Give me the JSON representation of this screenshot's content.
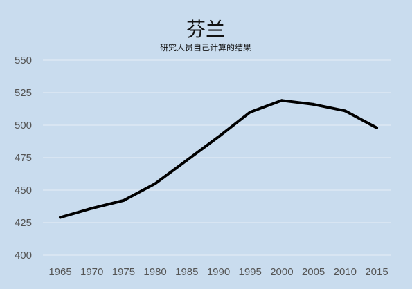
{
  "chart_data": {
    "type": "line",
    "title": "芬兰",
    "subtitle": "研究人员自己计算的结果",
    "xlabel": "",
    "ylabel": "",
    "x": [
      1965,
      1970,
      1975,
      1980,
      1985,
      1990,
      1995,
      2000,
      2005,
      2010,
      2015
    ],
    "series": [
      {
        "values": [
          429,
          436,
          442,
          455,
          473,
          491,
          510,
          519,
          516,
          511,
          498
        ]
      }
    ],
    "ylim": [
      400,
      550
    ],
    "yticks": [
      400,
      425,
      450,
      475,
      500,
      525,
      550
    ],
    "grid": true,
    "legend": "none",
    "colors": {
      "background": "#c9dcee",
      "line": "#000000",
      "grid": "#e6eef7",
      "tick_text": "#555555"
    }
  }
}
